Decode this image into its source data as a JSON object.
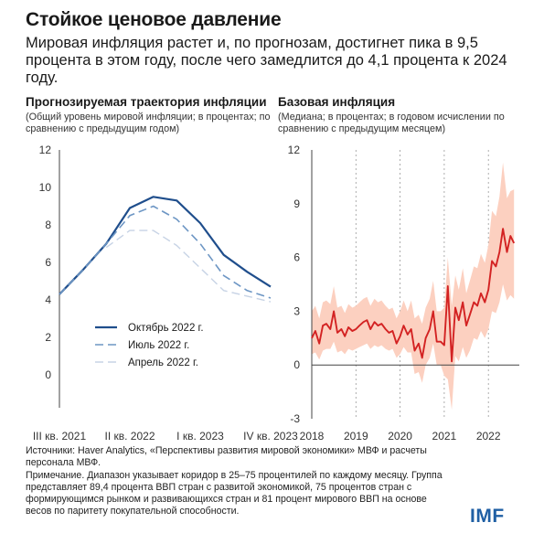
{
  "header": {
    "title": "Стойкое ценовое давление",
    "subtitle": "Мировая инфляция растет и, по прогнозам, достигнет пика в 9,5 процента в этом году, после чего замедлится до 4,1 процента к 2024 году."
  },
  "chart_data": [
    {
      "type": "line",
      "title": "Прогнозируемая траектория инфляции",
      "subtitle": "(Общий уровень мировой инфляции; в процентах; по сравнению с предыдущим годом)",
      "ylim": [
        0,
        12
      ],
      "yticks": [
        "0",
        "2",
        "4",
        "6",
        "8",
        "10",
        "12"
      ],
      "xlim": [
        0,
        9
      ],
      "xticks": [
        {
          "x": 0,
          "label": "III кв. 2021"
        },
        {
          "x": 3,
          "label": "II кв. 2022"
        },
        {
          "x": 6,
          "label": "I кв. 2023"
        },
        {
          "x": 9,
          "label": "IV кв. 2023"
        }
      ],
      "legend_position": "bottom-center",
      "series": [
        {
          "name": "Октябрь 2022 г.",
          "style": "solid",
          "color": "#1f4e8c",
          "x": [
            0,
            1,
            2,
            3,
            4,
            5,
            6,
            7,
            8,
            9
          ],
          "values": [
            4.3,
            5.6,
            7.0,
            8.9,
            9.5,
            9.3,
            8.1,
            6.4,
            5.5,
            4.7
          ]
        },
        {
          "name": "Июль 2022 г.",
          "style": "dashed",
          "color": "#6d96c4",
          "x": [
            0,
            1,
            2,
            3,
            4,
            5,
            6,
            7,
            8,
            9
          ],
          "values": [
            4.3,
            5.6,
            7.0,
            8.5,
            9.0,
            8.3,
            7.0,
            5.3,
            4.5,
            4.1
          ]
        },
        {
          "name": "Апрель 2022 г.",
          "style": "dashed",
          "color": "#c7d3e5",
          "x": [
            2,
            3,
            4,
            5,
            6,
            7,
            8,
            9
          ],
          "values": [
            6.8,
            7.7,
            7.7,
            6.9,
            5.7,
            4.5,
            4.2,
            3.9
          ]
        }
      ]
    },
    {
      "type": "line",
      "title": "Базовая инфляция",
      "subtitle": "(Медиана; в процентах; в годовом исчислении по сравнению с предыдущим месяцем)",
      "ylim": [
        -3,
        12
      ],
      "yticks": [
        "-3",
        "0",
        "3",
        "6",
        "9",
        "12"
      ],
      "xlim": [
        2018,
        2022.7
      ],
      "xticks": [
        "2018",
        "2019",
        "2020",
        "2021",
        "2022"
      ],
      "grid": "vertical-dotted",
      "series": [
        {
          "name": "Медиана",
          "color": "#d32222",
          "band_color": "#fcd0c0",
          "x": [
            2018.0,
            2018.08,
            2018.17,
            2018.25,
            2018.33,
            2018.42,
            2018.5,
            2018.58,
            2018.67,
            2018.75,
            2018.83,
            2018.92,
            2019.0,
            2019.08,
            2019.17,
            2019.25,
            2019.33,
            2019.42,
            2019.5,
            2019.58,
            2019.67,
            2019.75,
            2019.83,
            2019.92,
            2020.0,
            2020.08,
            2020.17,
            2020.25,
            2020.33,
            2020.42,
            2020.5,
            2020.58,
            2020.67,
            2020.75,
            2020.83,
            2020.92,
            2021.0,
            2021.08,
            2021.17,
            2021.25,
            2021.33,
            2021.42,
            2021.5,
            2021.58,
            2021.67,
            2021.75,
            2021.83,
            2021.92,
            2022.0,
            2022.08,
            2022.17,
            2022.25,
            2022.33,
            2022.42,
            2022.5,
            2022.58
          ],
          "values": [
            1.5,
            1.9,
            1.2,
            2.2,
            2.3,
            2.0,
            3.0,
            1.8,
            2.0,
            1.6,
            2.1,
            1.9,
            2.0,
            2.2,
            2.4,
            2.5,
            2.0,
            2.4,
            2.2,
            2.3,
            2.0,
            1.8,
            1.9,
            1.2,
            1.6,
            2.2,
            1.7,
            2.0,
            0.8,
            1.2,
            0.4,
            1.5,
            2.0,
            3.0,
            1.3,
            1.3,
            1.1,
            4.4,
            0.2,
            3.2,
            2.5,
            3.5,
            2.2,
            2.8,
            3.5,
            3.3,
            4.0,
            3.5,
            4.2,
            5.8,
            5.5,
            6.3,
            7.6,
            6.3,
            7.2,
            6.8
          ],
          "band_low": [
            0.6,
            0.7,
            0.3,
            0.8,
            0.9,
            0.9,
            1.3,
            0.7,
            0.8,
            0.6,
            0.9,
            0.8,
            0.9,
            1.0,
            1.1,
            1.2,
            0.9,
            1.1,
            1.0,
            1.1,
            0.9,
            0.8,
            0.9,
            0.4,
            0.6,
            1.0,
            0.7,
            0.7,
            -0.5,
            -0.4,
            -1.0,
            0.0,
            0.4,
            1.2,
            0.0,
            0.0,
            -0.6,
            -0.8,
            -2.5,
            0.5,
            0.2,
            1.0,
            0.4,
            0.8,
            1.5,
            1.4,
            1.9,
            1.5,
            2.0,
            3.0,
            2.9,
            3.5,
            4.5,
            3.6,
            3.9,
            3.7
          ],
          "band_high": [
            3.0,
            3.3,
            2.6,
            3.5,
            3.6,
            3.4,
            4.4,
            3.2,
            3.3,
            2.9,
            3.4,
            3.2,
            3.3,
            3.5,
            3.7,
            3.8,
            3.3,
            3.7,
            3.5,
            3.6,
            3.3,
            3.1,
            3.2,
            2.6,
            3.0,
            3.6,
            3.0,
            3.6,
            2.6,
            2.8,
            2.3,
            3.2,
            3.7,
            4.7,
            3.0,
            3.0,
            3.2,
            6.0,
            3.3,
            5.0,
            4.2,
            5.4,
            4.0,
            4.7,
            5.5,
            5.4,
            6.2,
            5.7,
            6.7,
            8.6,
            8.3,
            9.4,
            11.3,
            9.3,
            9.7,
            9.8
          ]
        }
      ]
    }
  ],
  "notes": {
    "sources": "Источники: Haver Analytics, «Перспективы развития мировой экономики» МВФ и расчеты персонала МВФ.",
    "note": "Примечание. Диапазон указывает коридор в 25–75 процентилей по каждому месяцу. Группа представляет 89,4 процента ВВП стран с развитой экономикой, 75 процентов стран с формирующимся рынком и развивающихся стран и 81 процент мирового ВВП на основе весов по паритету покупательной способности."
  },
  "logo": {
    "text": "IMF",
    "color": "#1f5fa4"
  }
}
